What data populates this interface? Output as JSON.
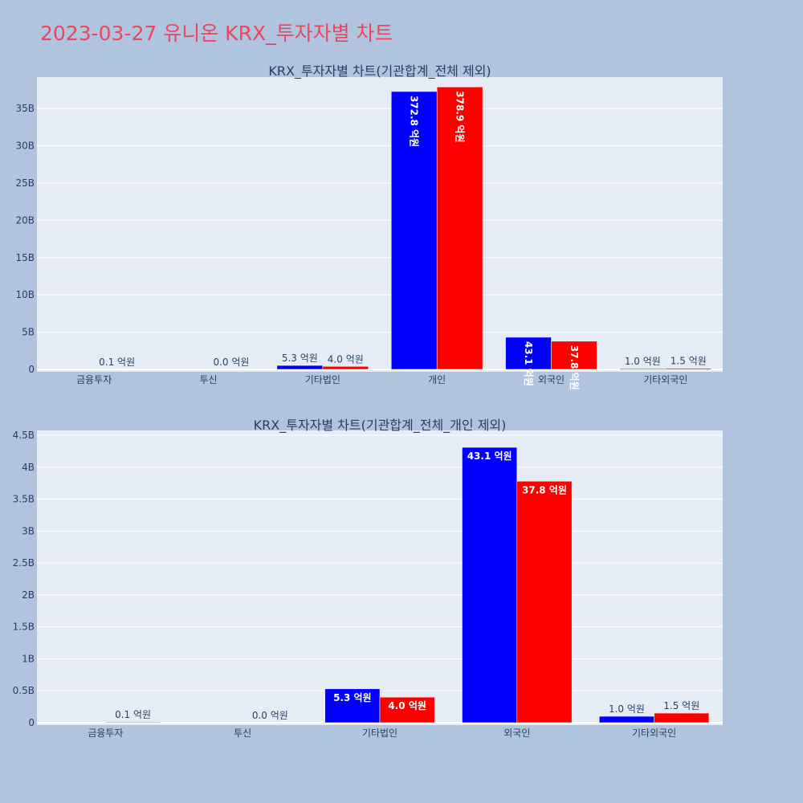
{
  "title": "2023-03-27 유니온 KRX_투자자별 차트",
  "chart_data": [
    {
      "type": "bar",
      "title": "KRX_투자자별 차트(기관합계_전체 제외)",
      "categories": [
        "금융투자",
        "투신",
        "기타법인",
        "개인",
        "외국인",
        "기타외국인"
      ],
      "series": [
        {
          "color": "#0000ff",
          "values": [
            0,
            0,
            530000000,
            37280000000,
            4310000000,
            100000000
          ],
          "labels": [
            "",
            "",
            "5.3 억원",
            "372.8 억원",
            "43.1 억원",
            "1.0 억원"
          ]
        },
        {
          "color": "#ff0000",
          "values": [
            10000000,
            0,
            400000000,
            37890000000,
            3780000000,
            150000000
          ],
          "labels": [
            "0.1 억원",
            "0.0 억원",
            "4.0 억원",
            "378.9 억원",
            "37.8 억원",
            "1.5 억원"
          ]
        }
      ],
      "ylim": [
        0,
        39000000000
      ],
      "yticks": [
        0,
        5000000000,
        10000000000,
        15000000000,
        20000000000,
        25000000000,
        30000000000,
        35000000000
      ],
      "ytick_labels": [
        "0",
        "5B",
        "10B",
        "15B",
        "20B",
        "25B",
        "30B",
        "35B"
      ],
      "grid": true
    },
    {
      "type": "bar",
      "title": "KRX_투자자별 차트(기관합계_전체_개인 제외)",
      "categories": [
        "금융투자",
        "투신",
        "기타법인",
        "외국인",
        "기타외국인"
      ],
      "series": [
        {
          "color": "#0000ff",
          "values": [
            0,
            0,
            530000000,
            4310000000,
            100000000
          ],
          "labels": [
            "",
            "",
            "5.3 억원",
            "43.1 억원",
            "1.0 억원"
          ]
        },
        {
          "color": "#ff0000",
          "values": [
            10000000,
            0,
            400000000,
            3780000000,
            150000000
          ],
          "labels": [
            "0.1 억원",
            "0.0 억원",
            "4.0 억원",
            "37.8 억원",
            "1.5 억원"
          ]
        }
      ],
      "ylim": [
        0,
        4550000000
      ],
      "yticks": [
        0,
        500000000,
        1000000000,
        1500000000,
        2000000000,
        2500000000,
        3000000000,
        3500000000,
        4000000000,
        4500000000
      ],
      "ytick_labels": [
        "0",
        "0.5B",
        "1B",
        "1.5B",
        "2B",
        "2.5B",
        "3B",
        "3.5B",
        "4B",
        "4.5B"
      ],
      "grid": true
    }
  ]
}
